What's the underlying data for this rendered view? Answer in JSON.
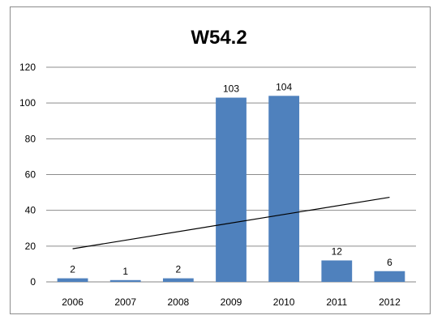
{
  "chart_data": {
    "type": "bar",
    "title": "W54.2",
    "categories": [
      "2006",
      "2007",
      "2008",
      "2009",
      "2010",
      "2011",
      "2012"
    ],
    "values": [
      2,
      1,
      2,
      103,
      104,
      12,
      6
    ],
    "data_labels": [
      "2",
      "1",
      "2",
      "103",
      "104",
      "12",
      "6"
    ],
    "ylim": [
      0,
      120
    ],
    "yticks": [
      0,
      20,
      40,
      60,
      80,
      100,
      120
    ],
    "ytick_labels": [
      "0",
      "20",
      "40",
      "60",
      "80",
      "100",
      "120"
    ],
    "grid": true,
    "legend": "none",
    "bar_color": "#4f81bd",
    "trendline": {
      "type": "linear",
      "color": "#000000",
      "start": 18.5,
      "end": 47.3
    }
  }
}
